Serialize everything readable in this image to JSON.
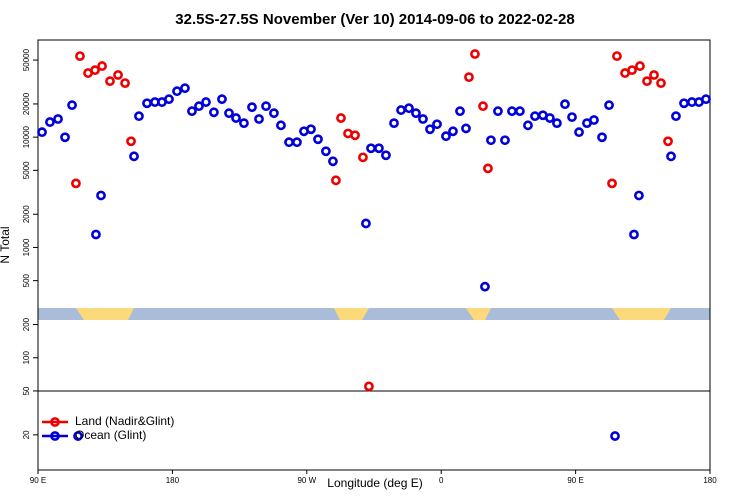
{
  "chart_data": {
    "type": "scatter",
    "title": "32.5S-27.5S November (Ver 10)   2014-09-06 to 2022-02-28",
    "xlabel": "Longitude (deg E)",
    "ylabel": "N Total",
    "ylog": true,
    "legend": "lower left",
    "xlim": [
      90,
      540
    ],
    "xticks": [
      {
        "value": 90,
        "label": "90 E"
      },
      {
        "value": 180,
        "label": "180"
      },
      {
        "value": 270,
        "label": "90 W"
      },
      {
        "value": 360,
        "label": "0"
      },
      {
        "value": 450,
        "label": "90 E"
      },
      {
        "value": 540,
        "label": "180"
      }
    ],
    "ylim": [
      9.6,
      76000
    ],
    "yticks": [
      20,
      50,
      100,
      200,
      500,
      1000,
      2000,
      5000,
      10000,
      20000,
      50000
    ],
    "series": [
      {
        "name": "Land (Nadir&Glint)",
        "color": "#ee0000",
        "x": [
          115.4,
          118.1,
          123.5,
          128.2,
          132.9,
          138.2,
          143.6,
          148.3,
          152.3,
          289.5,
          292.9,
          297.6,
          302.3,
          307.6,
          311.6,
          378.6,
          382.6,
          388,
          391.3,
          474.4,
          477.7,
          483.1,
          487.8,
          493.1,
          497.8,
          502.5,
          507.2,
          511.9
        ],
        "values": [
          3810,
          54300,
          38100,
          40500,
          44100,
          32200,
          36600,
          30900,
          9180,
          4060,
          14900,
          10800,
          10400,
          6560,
          55,
          35000,
          56700,
          19100,
          5210,
          3810,
          54300,
          38100,
          40500,
          44100,
          32200,
          36600,
          30900,
          9180
        ]
      },
      {
        "name": "Ocean (Glint)",
        "color": "#0000dd",
        "x": [
          92.7,
          98,
          103.4,
          108.1,
          112.8,
          116.8,
          128.8,
          132.2,
          154.3,
          157.6,
          163,
          168.3,
          173,
          177.7,
          183.1,
          188.4,
          193.1,
          197.8,
          202.5,
          207.8,
          213.2,
          217.9,
          222.6,
          227.9,
          233.3,
          238,
          242.7,
          248,
          252.7,
          258.1,
          263.4,
          268.1,
          272.8,
          277.5,
          282.8,
          287.5,
          309.6,
          313,
          318.3,
          323,
          328.4,
          333.1,
          338.4,
          343.1,
          347.8,
          352.5,
          357.2,
          363.2,
          367.9,
          372.6,
          376.6,
          389.3,
          393.3,
          398,
          402.7,
          407.4,
          412.7,
          418.1,
          422.8,
          428.1,
          432.8,
          437.5,
          442.9,
          447.6,
          452.3,
          457.6,
          462.3,
          467.7,
          472.4,
          476.4,
          489.1,
          492.4,
          513.9,
          517.2,
          522.6,
          527.9,
          532.6,
          537.3
        ],
        "values": [
          11100,
          13700,
          14600,
          9980,
          19500,
          19.5,
          1310,
          2960,
          6700,
          15500,
          20300,
          20800,
          20800,
          22100,
          26100,
          27800,
          17200,
          19100,
          20800,
          16800,
          22100,
          16500,
          14900,
          13400,
          18700,
          14600,
          19100,
          16500,
          12800,
          9000,
          9000,
          11300,
          11800,
          9570,
          7450,
          6040,
          1650,
          7930,
          7930,
          6850,
          13400,
          17600,
          18300,
          16500,
          14600,
          11800,
          13100,
          10200,
          11300,
          17200,
          12000,
          441,
          9380,
          17200,
          9380,
          17200,
          17200,
          12800,
          15500,
          15800,
          14900,
          13400,
          19900,
          15200,
          11100,
          13400,
          14300,
          9980,
          19500,
          19.5,
          1310,
          2960,
          6700,
          15500,
          20300,
          20800,
          20800,
          22100
        ]
      }
    ]
  }
}
